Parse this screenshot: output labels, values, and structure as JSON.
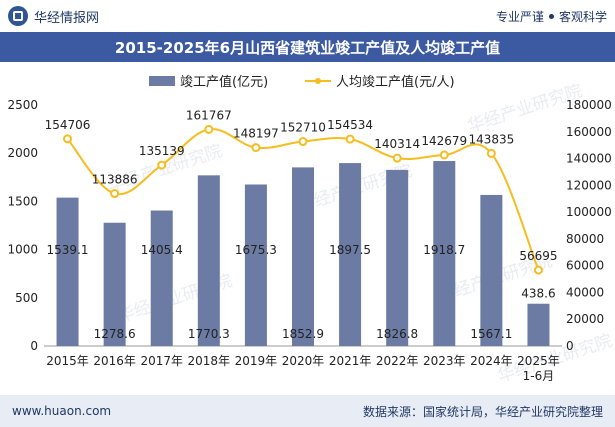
{
  "header": {
    "brand": "华经情报网",
    "tag1": "专业严谨",
    "tag2": "客观科学"
  },
  "title": "2015-2025年6月山西省建筑业竣工产值及人均竣工产值",
  "footer": {
    "website": "www.huaon.com",
    "source": "数据来源：国家统计局，华经产业研究院整理"
  },
  "watermark": "华经产业研究院",
  "colors": {
    "bar": "#6b7ba4",
    "line": "#f5bd1f",
    "title_bg": "#3b5aa2"
  },
  "chart_data": {
    "type": "bar",
    "categories": [
      "2015年",
      "2016年",
      "2017年",
      "2018年",
      "2019年",
      "2020年",
      "2021年",
      "2022年",
      "2023年",
      "2024年",
      "2025年\n1-6月"
    ],
    "series": [
      {
        "name": "竣工产值(亿元)",
        "type": "bar",
        "axis": "left",
        "values": [
          1539.1,
          1278.6,
          1405.4,
          1770.3,
          1675.3,
          1852.9,
          1897.5,
          1826.8,
          1918.7,
          1567.1,
          438.6
        ],
        "labels": [
          "1539.1",
          "1278.6",
          "1405.4",
          "1770.3",
          "1675.3",
          "1852.9",
          "1897.5",
          "1826.8",
          "1918.7",
          "1567.1",
          "438.6"
        ]
      },
      {
        "name": "人均竣工产值(元/人)",
        "type": "line",
        "axis": "right",
        "values": [
          154706,
          113886,
          135139,
          161767,
          148197,
          152710,
          154534,
          140314,
          142679,
          143835,
          56695
        ],
        "labels": [
          "154706",
          "113886",
          "135139",
          "161767",
          "148197",
          "152710",
          "154534",
          "140314",
          "142679",
          "143835",
          "56695"
        ]
      }
    ],
    "y_left": {
      "range": [
        0,
        2500
      ],
      "ticks": [
        "0",
        "500",
        "1000",
        "1500",
        "2000",
        "2500"
      ]
    },
    "y_right": {
      "range": [
        0,
        180000
      ],
      "ticks": [
        "0",
        "20000",
        "40000",
        "60000",
        "80000",
        "100000",
        "120000",
        "140000",
        "160000",
        "180000"
      ]
    },
    "legend_position": "top",
    "grid": false
  }
}
